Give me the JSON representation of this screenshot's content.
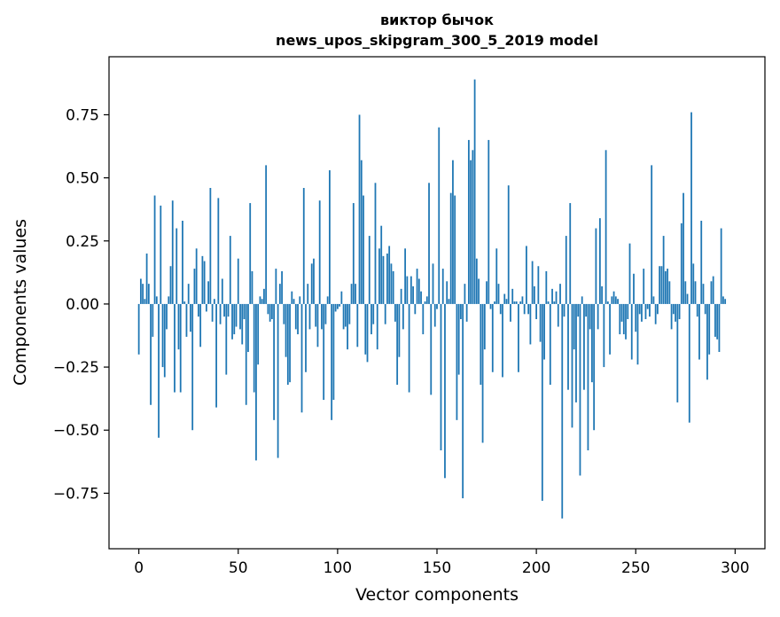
{
  "chart_data": {
    "type": "bar",
    "title_lines": [
      "виктор бычок",
      "news_upos_skipgram_300_5_2019 model"
    ],
    "xlabel": "Vector components",
    "ylabel": "Components values",
    "xlim": [
      -15,
      315
    ],
    "ylim": [
      -0.97,
      0.98
    ],
    "xticks": [
      0,
      50,
      100,
      150,
      200,
      250,
      300
    ],
    "yticks": [
      -0.75,
      -0.5,
      -0.25,
      0.0,
      0.25,
      0.5,
      0.75
    ],
    "ytick_labels": [
      "−0.75",
      "−0.50",
      "−0.25",
      "0.00",
      "0.25",
      "0.50",
      "0.75"
    ],
    "bar_color": "#1f77b4",
    "values": [
      -0.2,
      0.1,
      0.08,
      0.02,
      0.2,
      0.08,
      -0.4,
      -0.13,
      0.43,
      0.03,
      -0.53,
      0.39,
      -0.25,
      -0.29,
      -0.1,
      0.03,
      0.15,
      0.41,
      -0.35,
      0.3,
      -0.18,
      -0.35,
      0.33,
      0.01,
      -0.13,
      0.08,
      -0.11,
      -0.5,
      0.14,
      0.22,
      -0.05,
      -0.17,
      0.19,
      0.17,
      -0.03,
      0.09,
      0.46,
      -0.07,
      0.02,
      -0.41,
      0.42,
      -0.08,
      0.1,
      -0.05,
      -0.28,
      -0.05,
      0.27,
      -0.14,
      -0.12,
      -0.09,
      0.18,
      -0.1,
      -0.16,
      -0.06,
      -0.4,
      -0.19,
      0.4,
      0.13,
      -0.35,
      -0.62,
      -0.24,
      0.03,
      0.02,
      0.06,
      0.55,
      -0.04,
      -0.07,
      -0.06,
      -0.46,
      0.14,
      -0.61,
      0.08,
      0.13,
      -0.08,
      -0.21,
      -0.32,
      -0.31,
      0.05,
      0.02,
      -0.1,
      -0.12,
      0.03,
      -0.43,
      0.46,
      -0.27,
      0.08,
      -0.1,
      0.16,
      0.18,
      -0.09,
      -0.17,
      0.41,
      -0.1,
      -0.38,
      -0.08,
      0.03,
      0.53,
      -0.46,
      -0.38,
      -0.03,
      -0.02,
      -0.01,
      0.05,
      -0.1,
      -0.09,
      -0.18,
      -0.08,
      0.08,
      0.4,
      0.08,
      -0.17,
      0.75,
      0.57,
      0.43,
      -0.2,
      -0.23,
      0.27,
      -0.12,
      -0.08,
      0.48,
      -0.18,
      0.22,
      0.31,
      0.19,
      -0.08,
      0.2,
      0.23,
      0.16,
      0.13,
      -0.07,
      -0.32,
      -0.21,
      0.06,
      -0.1,
      0.22,
      0.11,
      -0.35,
      0.11,
      0.07,
      -0.04,
      0.14,
      0.1,
      0.05,
      -0.12,
      0.01,
      0.03,
      0.48,
      -0.36,
      0.16,
      -0.09,
      -0.02,
      0.7,
      -0.58,
      0.14,
      -0.69,
      0.09,
      0.02,
      0.44,
      0.57,
      0.43,
      -0.46,
      -0.28,
      -0.06,
      -0.77,
      0.08,
      -0.07,
      0.65,
      0.57,
      0.61,
      0.89,
      0.18,
      0.1,
      -0.32,
      -0.55,
      -0.18,
      0.09,
      0.65,
      -0.02,
      -0.27,
      0.01,
      0.22,
      0.08,
      -0.04,
      -0.29,
      0.04,
      0.02,
      0.47,
      -0.07,
      0.06,
      0.01,
      0.01,
      -0.27,
      0.01,
      0.03,
      -0.04,
      0.23,
      -0.04,
      -0.16,
      0.17,
      0.07,
      -0.06,
      0.15,
      -0.15,
      -0.78,
      -0.22,
      0.13,
      0.01,
      -0.32,
      0.06,
      0.01,
      0.05,
      -0.09,
      0.08,
      -0.85,
      -0.05,
      0.27,
      -0.34,
      0.4,
      -0.49,
      -0.18,
      -0.39,
      -0.05,
      -0.68,
      0.03,
      -0.34,
      -0.05,
      -0.58,
      -0.1,
      -0.31,
      -0.5,
      0.3,
      -0.1,
      0.34,
      0.07,
      -0.25,
      0.61,
      0.01,
      -0.2,
      0.03,
      0.05,
      0.03,
      0.02,
      -0.12,
      -0.07,
      -0.12,
      -0.14,
      -0.06,
      0.24,
      -0.22,
      0.12,
      -0.11,
      -0.24,
      -0.04,
      -0.07,
      0.14,
      -0.06,
      -0.02,
      -0.05,
      0.55,
      0.03,
      -0.08,
      -0.04,
      0.15,
      0.15,
      0.27,
      0.13,
      0.14,
      0.09,
      -0.1,
      -0.04,
      -0.07,
      -0.39,
      -0.06,
      0.32,
      0.44,
      0.09,
      0.04,
      -0.47,
      0.76,
      0.16,
      0.09,
      -0.05,
      -0.22,
      0.33,
      0.08,
      -0.04,
      -0.3,
      -0.2,
      0.09,
      0.11,
      -0.13,
      -0.14,
      -0.19,
      0.3,
      0.03,
      0.02
    ]
  }
}
